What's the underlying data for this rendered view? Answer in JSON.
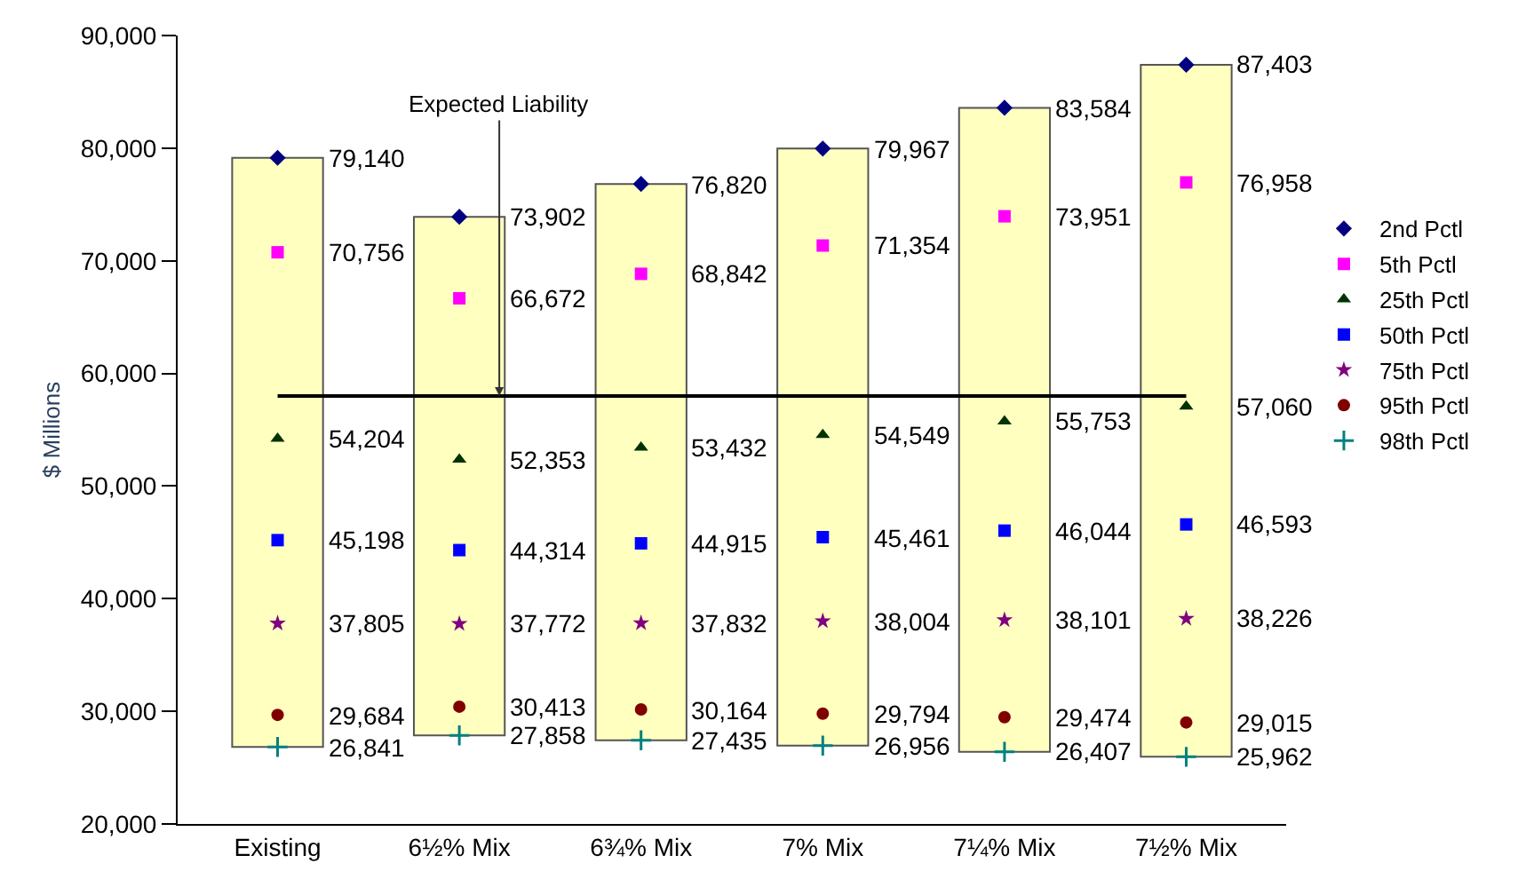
{
  "chart_data": {
    "type": "scatter",
    "ylabel": "$ Millions",
    "categories": [
      "Existing",
      "6½% Mix",
      "6¾% Mix",
      "7% Mix",
      "7¼% Mix",
      "7½% Mix"
    ],
    "ylim": [
      20000,
      90000
    ],
    "yticks": [
      {
        "value": 20000,
        "label": "20,000"
      },
      {
        "value": 30000,
        "label": "30,000"
      },
      {
        "value": 40000,
        "label": "40,000"
      },
      {
        "value": 50000,
        "label": "50,000"
      },
      {
        "value": 60000,
        "label": "60,000"
      },
      {
        "value": 70000,
        "label": "70,000"
      },
      {
        "value": 80000,
        "label": "80,000"
      },
      {
        "value": 90000,
        "label": "90,000"
      }
    ],
    "grid": false,
    "legend": "right",
    "ref_lines": [
      {
        "axis": "y",
        "value": 58000,
        "label": "Expected Liability",
        "color": "#000000"
      }
    ],
    "series": [
      {
        "type": "bar",
        "color": "#ffffc0",
        "base": [
          26841,
          27858,
          27435,
          26956,
          26407,
          25962
        ],
        "values": [
          52299,
          46044,
          49385,
          53011,
          57177,
          61441
        ]
      },
      {
        "name": "2nd Pctl",
        "marker": "diamond",
        "color": "#000080",
        "values": [
          79140,
          73902,
          76820,
          79967,
          83584,
          87403
        ],
        "value_labels": [
          "79,140",
          "73,902",
          "76,820",
          "79,967",
          "83,584",
          "87,403"
        ]
      },
      {
        "name": "5th Pctl",
        "marker": "square",
        "color": "#ff00ff",
        "values": [
          70756,
          66672,
          68842,
          71354,
          73951,
          76958
        ],
        "value_labels": [
          "70,756",
          "66,672",
          "68,842",
          "71,354",
          "73,951",
          "76,958"
        ]
      },
      {
        "name": "25th Pctl",
        "marker": "triangle",
        "color": "#003300",
        "values": [
          54204,
          52353,
          53432,
          54549,
          55753,
          57060
        ],
        "value_labels": [
          "54,204",
          "52,353",
          "53,432",
          "54,549",
          "55,753",
          "57,060"
        ]
      },
      {
        "name": "50th Pctl",
        "marker": "square",
        "color": "#0000ff",
        "values": [
          45198,
          44314,
          44915,
          45461,
          46044,
          46593
        ],
        "value_labels": [
          "45,198",
          "44,314",
          "44,915",
          "45,461",
          "46,044",
          "46,593"
        ]
      },
      {
        "name": "75th Pctl",
        "marker": "star",
        "color": "#800080",
        "values": [
          37805,
          37772,
          37832,
          38004,
          38101,
          38226
        ],
        "value_labels": [
          "37,805",
          "37,772",
          "37,832",
          "38,004",
          "38,101",
          "38,226"
        ]
      },
      {
        "name": "95th Pctl",
        "marker": "circle",
        "color": "#800000",
        "values": [
          29684,
          30413,
          30164,
          29794,
          29474,
          29015
        ],
        "value_labels": [
          "29,684",
          "30,413",
          "30,164",
          "29,794",
          "29,474",
          "29,015"
        ]
      },
      {
        "name": "98th Pctl",
        "marker": "cross",
        "color": "#008080",
        "values": [
          26841,
          27858,
          27435,
          26956,
          26407,
          25962
        ],
        "value_labels": [
          "26,841",
          "27,858",
          "27,435",
          "26,956",
          "26,407",
          "25,962"
        ]
      }
    ]
  }
}
